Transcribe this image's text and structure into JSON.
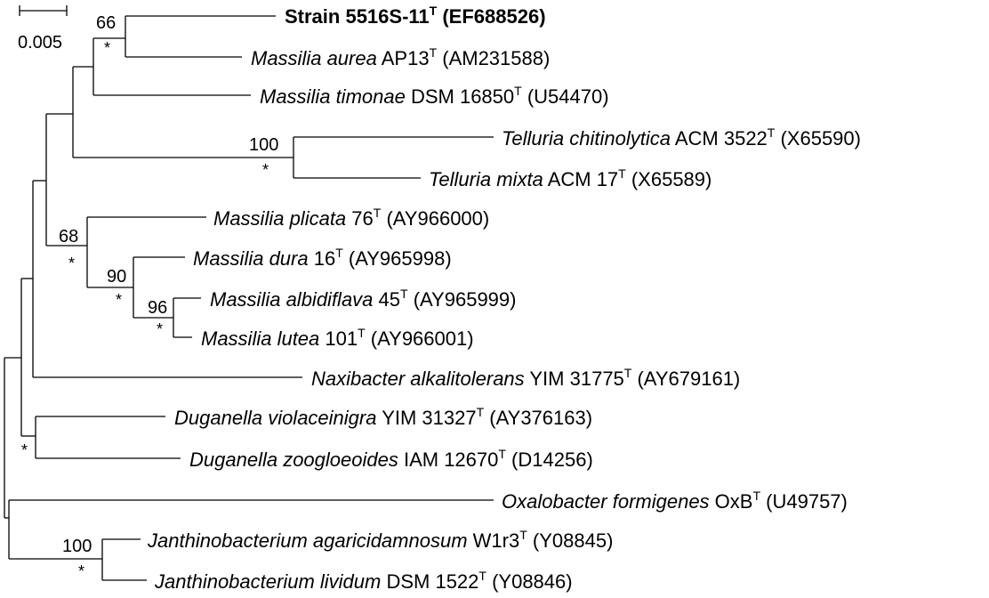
{
  "scale_bar": {
    "label": "0.005"
  },
  "taxa": [
    {
      "id": "t1",
      "genus_species": "Strain 5516S-11",
      "strain": "",
      "sup": "T",
      "accession": "(EF688526)",
      "bold": true
    },
    {
      "id": "t2",
      "genus_species": "Massilia aurea",
      "strain": "AP13",
      "sup": "T",
      "accession": "(AM231588)",
      "bold": false
    },
    {
      "id": "t3",
      "genus_species": "Massilia timonae",
      "strain": "DSM 16850",
      "sup": "T",
      "accession": "(U54470)",
      "bold": false
    },
    {
      "id": "t4",
      "genus_species": "Telluria chitinolytica",
      "strain": "ACM 3522",
      "sup": "T",
      "accession": "(X65590)",
      "bold": false
    },
    {
      "id": "t5",
      "genus_species": "Telluria mixta",
      "strain": "ACM 17",
      "sup": "T",
      "accession": "(X65589)",
      "bold": false
    },
    {
      "id": "t6",
      "genus_species": "Massilia plicata",
      "strain": "76",
      "sup": "T",
      "accession": "(AY966000)",
      "bold": false
    },
    {
      "id": "t7",
      "genus_species": "Massilia dura",
      "strain": "16",
      "sup": "T",
      "accession": "(AY965998)",
      "bold": false
    },
    {
      "id": "t8",
      "genus_species": "Massilia albidiflava",
      "strain": "45",
      "sup": "T",
      "accession": "(AY965999)",
      "bold": false
    },
    {
      "id": "t9",
      "genus_species": "Massilia lutea",
      "strain": "101",
      "sup": "T",
      "accession": "(AY966001)",
      "bold": false
    },
    {
      "id": "t10",
      "genus_species": "Naxibacter alkalitolerans",
      "strain": "YIM 31775",
      "sup": "T",
      "accession": "(AY679161)",
      "bold": false
    },
    {
      "id": "t11",
      "genus_species": "Duganella violaceinigra",
      "strain": "YIM 31327",
      "sup": "T",
      "accession": "(AY376163)",
      "bold": false
    },
    {
      "id": "t12",
      "genus_species": "Duganella zoogloeoides",
      "strain": "IAM 12670",
      "sup": "T",
      "accession": "(D14256)",
      "bold": false
    },
    {
      "id": "t13",
      "genus_species": "Oxalobacter formigenes",
      "strain": "OxB",
      "sup": "T",
      "accession": "(U49757)",
      "bold": false
    },
    {
      "id": "t14",
      "genus_species": "Janthinobacterium agaricidamnosum",
      "strain": "W1r3",
      "sup": "T",
      "accession": "(Y08845)",
      "bold": false
    },
    {
      "id": "t15",
      "genus_species": "Janthinobacterium lividum",
      "strain": "DSM 1522",
      "sup": "T",
      "accession": "(Y08846)",
      "bold": false
    }
  ],
  "support_values": [
    "66",
    "100",
    "68",
    "90",
    "96",
    "100"
  ],
  "star_label": "*"
}
